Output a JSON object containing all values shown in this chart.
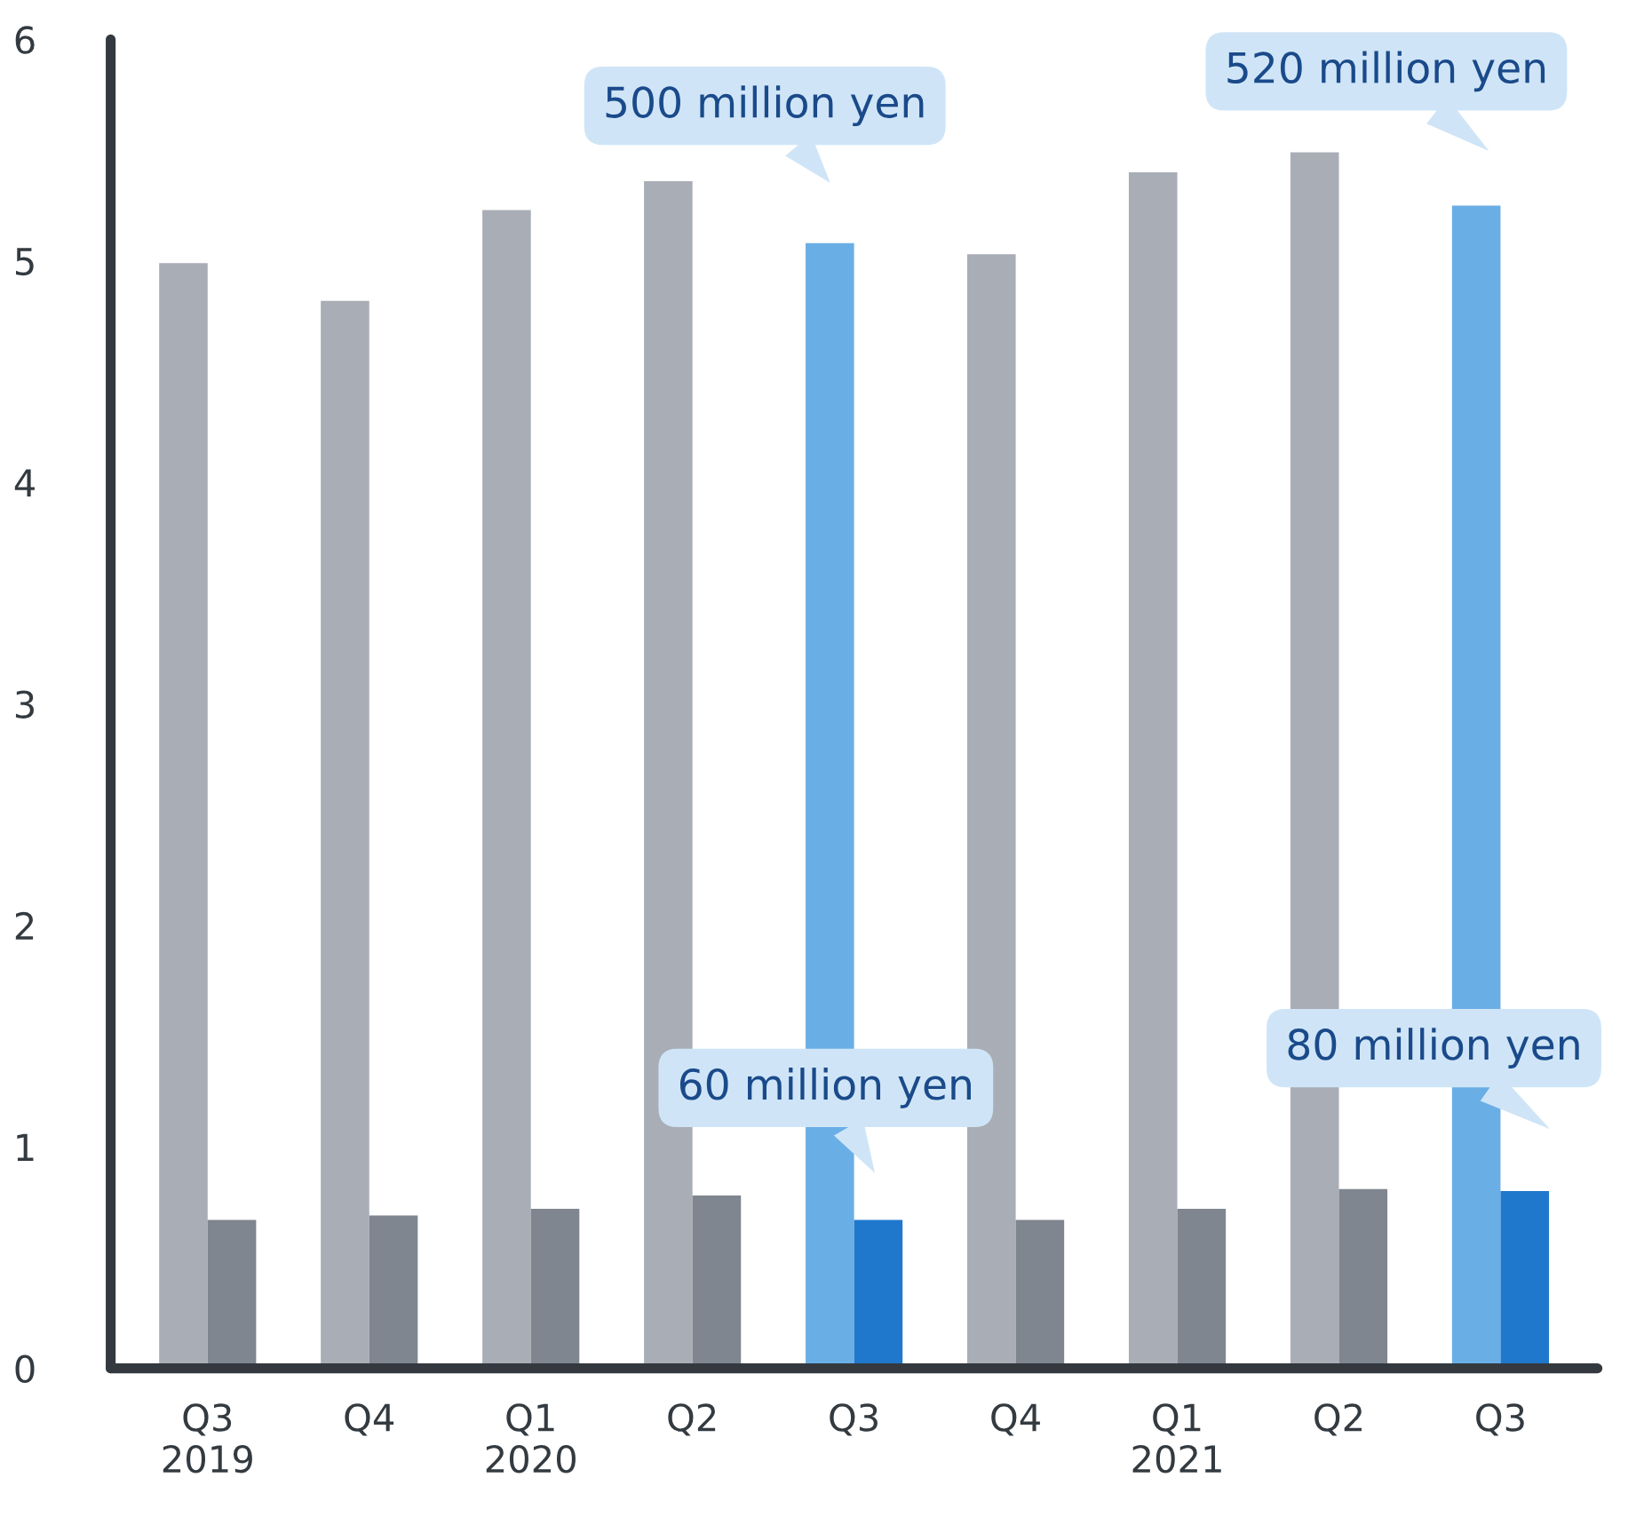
{
  "chart_data": {
    "type": "bar",
    "categories": [
      "Q3\n2019",
      "Q4",
      "Q1\n2020",
      "Q2",
      "Q3",
      "Q4",
      "Q1\n2021",
      "Q2",
      "Q3"
    ],
    "series": [
      {
        "colors": [
          "#a9adb5",
          "#a9adb5",
          "#a9adb5",
          "#a9adb5",
          "#6aaee6",
          "#a9adb5",
          "#a9adb5",
          "#a9adb5",
          "#6aaee6"
        ],
        "values": [
          4.99,
          4.82,
          5.23,
          5.36,
          5.08,
          5.03,
          5.4,
          5.49,
          5.25
        ]
      },
      {
        "colors": [
          "#80868f",
          "#80868f",
          "#80868f",
          "#80868f",
          "#1f78cc",
          "#80868f",
          "#80868f",
          "#80868f",
          "#1f78cc"
        ],
        "values": [
          0.67,
          0.69,
          0.72,
          0.78,
          0.67,
          0.67,
          0.72,
          0.81,
          0.8
        ]
      }
    ],
    "annotations": [
      "500 million yen",
      "520 million yen",
      "60 million yen",
      "80 million yen"
    ],
    "ylim": [
      0,
      6
    ],
    "yticks": [
      0,
      1,
      2,
      3,
      4,
      5,
      6
    ],
    "grid": false,
    "legend": false
  }
}
